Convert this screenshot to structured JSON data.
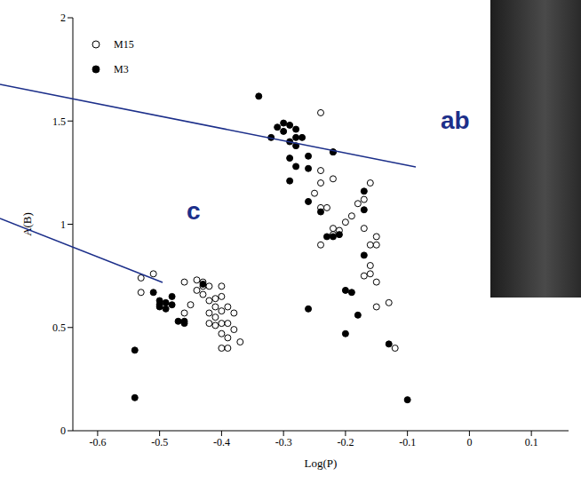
{
  "chart_data": {
    "type": "scatter",
    "x_label": "Log(P)",
    "y_label": "A(B)",
    "xlim": [
      -0.64,
      0.16
    ],
    "xticks": [
      -0.6,
      -0.5,
      -0.4,
      -0.3,
      -0.2,
      -0.1,
      0,
      0.1
    ],
    "ylim": [
      0,
      2
    ],
    "yticks": [
      0,
      0.5,
      1,
      1.5,
      2
    ],
    "legend": "upper left",
    "grid": false,
    "annotations": [
      "ab",
      "c"
    ],
    "series": [
      {
        "name": "M15",
        "color": "#000000",
        "marker": "open_circle",
        "x": [
          -0.24,
          -0.22,
          -0.24,
          -0.22,
          -0.16,
          -0.24,
          -0.25,
          -0.17,
          -0.18,
          -0.23,
          -0.24,
          -0.19,
          -0.2,
          -0.22,
          -0.21,
          -0.22,
          -0.15,
          -0.15,
          -0.16,
          -0.24,
          -0.17,
          -0.16,
          -0.16,
          -0.15,
          -0.17,
          -0.15,
          -0.13,
          -0.12,
          -0.53,
          -0.51,
          -0.53,
          -0.46,
          -0.44,
          -0.43,
          -0.43,
          -0.44,
          -0.42,
          -0.4,
          -0.41,
          -0.4,
          -0.39,
          -0.42,
          -0.41,
          -0.43,
          -0.42,
          -0.41,
          -0.4,
          -0.38,
          -0.4,
          -0.39,
          -0.42,
          -0.41,
          -0.38,
          -0.4,
          -0.39,
          -0.4,
          -0.39,
          -0.37,
          -0.46,
          -0.45
        ],
        "y": [
          1.54,
          1.35,
          1.26,
          1.22,
          1.2,
          1.2,
          1.15,
          1.12,
          1.1,
          1.08,
          1.08,
          1.04,
          1.01,
          0.98,
          0.97,
          0.95,
          0.94,
          0.9,
          0.9,
          0.9,
          0.98,
          0.8,
          0.76,
          0.72,
          0.75,
          0.6,
          0.62,
          0.4,
          0.74,
          0.76,
          0.67,
          0.72,
          0.73,
          0.72,
          0.7,
          0.68,
          0.7,
          0.7,
          0.64,
          0.65,
          0.6,
          0.63,
          0.6,
          0.66,
          0.57,
          0.55,
          0.58,
          0.57,
          0.52,
          0.52,
          0.52,
          0.51,
          0.49,
          0.47,
          0.45,
          0.4,
          0.4,
          0.43,
          0.57,
          0.61
        ]
      },
      {
        "name": "M3",
        "color": "#000000",
        "marker": "filled_circle",
        "x": [
          -0.34,
          -0.31,
          -0.3,
          -0.29,
          -0.28,
          -0.3,
          -0.32,
          -0.28,
          -0.27,
          -0.29,
          -0.28,
          -0.26,
          -0.29,
          -0.22,
          -0.28,
          -0.26,
          -0.29,
          -0.26,
          -0.24,
          -0.23,
          -0.22,
          -0.21,
          -0.17,
          -0.17,
          -0.17,
          -0.2,
          -0.19,
          -0.26,
          -0.18,
          -0.2,
          -0.13,
          -0.1,
          -0.51,
          -0.5,
          -0.5,
          -0.49,
          -0.48,
          -0.49,
          -0.48,
          -0.47,
          -0.46,
          -0.46,
          -0.43,
          -0.54,
          -0.54,
          -0.5
        ],
        "y": [
          1.62,
          1.47,
          1.49,
          1.48,
          1.46,
          1.45,
          1.42,
          1.42,
          1.42,
          1.4,
          1.38,
          1.33,
          1.32,
          1.35,
          1.28,
          1.27,
          1.21,
          1.11,
          1.06,
          0.94,
          0.94,
          0.95,
          1.16,
          1.07,
          0.85,
          0.68,
          0.67,
          0.59,
          0.56,
          0.47,
          0.42,
          0.15,
          0.67,
          0.63,
          0.61,
          0.62,
          0.65,
          0.59,
          0.61,
          0.53,
          0.53,
          0.52,
          0.71,
          0.39,
          0.16,
          0.6
        ]
      }
    ]
  }
}
